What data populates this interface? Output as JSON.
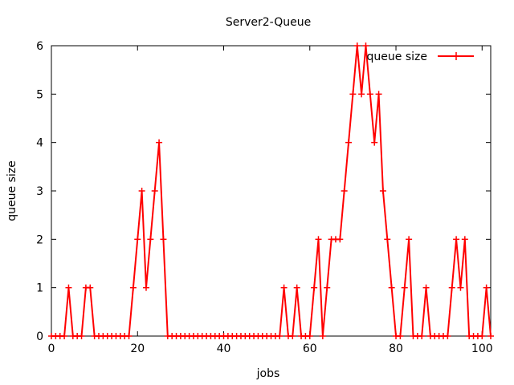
{
  "chart_data": {
    "type": "line",
    "title": "Server2-Queue",
    "xlabel": "jobs",
    "ylabel": "queue size",
    "xlim": [
      0,
      102
    ],
    "ylim": [
      0,
      6
    ],
    "xticks": [
      0,
      20,
      40,
      60,
      80,
      100
    ],
    "yticks": [
      0,
      1,
      2,
      3,
      4,
      5,
      6
    ],
    "legend_position": "top-right",
    "series": [
      {
        "name": "queue size",
        "color": "#ff0000",
        "marker": "plus",
        "x": [
          0,
          1,
          2,
          3,
          4,
          5,
          6,
          7,
          8,
          9,
          10,
          11,
          12,
          13,
          14,
          15,
          16,
          17,
          18,
          19,
          20,
          21,
          22,
          23,
          24,
          25,
          26,
          27,
          28,
          29,
          30,
          31,
          32,
          33,
          34,
          35,
          36,
          37,
          38,
          39,
          40,
          41,
          42,
          43,
          44,
          45,
          46,
          47,
          48,
          49,
          50,
          51,
          52,
          53,
          54,
          55,
          56,
          57,
          58,
          59,
          60,
          61,
          62,
          63,
          64,
          65,
          66,
          67,
          68,
          69,
          70,
          71,
          72,
          73,
          74,
          75,
          76,
          77,
          78,
          79,
          80,
          81,
          82,
          83,
          84,
          85,
          86,
          87,
          88,
          89,
          90,
          91,
          92,
          93,
          94,
          95,
          96,
          97,
          98,
          99,
          100,
          101,
          102
        ],
        "y": [
          0,
          0,
          0,
          0,
          1,
          0,
          0,
          0,
          1,
          1,
          0,
          0,
          0,
          0,
          0,
          0,
          0,
          0,
          0,
          1,
          2,
          3,
          1,
          2,
          3,
          4,
          2,
          0,
          0,
          0,
          0,
          0,
          0,
          0,
          0,
          0,
          0,
          0,
          0,
          0,
          0,
          0,
          0,
          0,
          0,
          0,
          0,
          0,
          0,
          0,
          0,
          0,
          0,
          0,
          1,
          0,
          0,
          1,
          0,
          0,
          0,
          1,
          2,
          0,
          1,
          2,
          2,
          2,
          3,
          4,
          5,
          6,
          5,
          6,
          5,
          4,
          5,
          3,
          2,
          1,
          0,
          0,
          1,
          2,
          0,
          0,
          0,
          1,
          0,
          0,
          0,
          0,
          0,
          1,
          2,
          1,
          2,
          0,
          0,
          0,
          0,
          1,
          0
        ]
      }
    ]
  }
}
